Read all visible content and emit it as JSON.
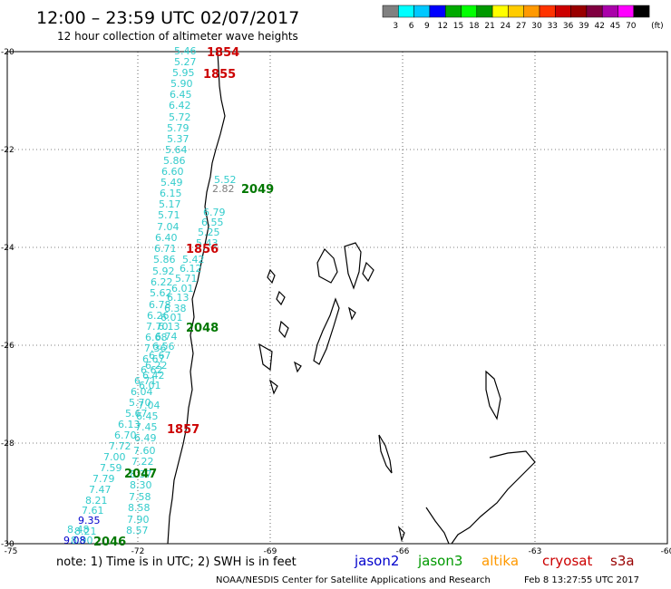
{
  "header": {
    "title": "12:00 – 23:59 UTC 02/07/2017",
    "subtitle": "12 hour collection of altimeter wave heights"
  },
  "legend": {
    "unit": "(ft)",
    "colors": [
      "#808080",
      "#00ffff",
      "#00c8ff",
      "#0000ff",
      "#00aa00",
      "#00ff00",
      "#009900",
      "#ffff00",
      "#ffcc00",
      "#ff9900",
      "#ff3300",
      "#cc0000",
      "#990000",
      "#800040",
      "#aa00aa",
      "#ff00ff",
      "#000000"
    ],
    "labels": [
      "3",
      "6",
      "9",
      "12",
      "15",
      "18",
      "21",
      "24",
      "27",
      "30",
      "33",
      "36",
      "39",
      "42",
      "45",
      "70"
    ]
  },
  "axes": {
    "lon_labels": [
      "-75",
      "-72",
      "-69",
      "-66",
      "-63",
      "-60"
    ],
    "lat_labels": [
      "-20",
      "-22",
      "-24",
      "-26",
      "-28",
      "-30"
    ]
  },
  "wave_heights": [
    {
      "v": "5.46",
      "c": "#33cccc"
    },
    {
      "v": "5.27",
      "c": "#33cccc"
    },
    {
      "v": "5.95",
      "c": "#33cccc"
    },
    {
      "v": "5.90",
      "c": "#33cccc"
    },
    {
      "v": "6.45",
      "c": "#33cccc"
    },
    {
      "v": "6.42",
      "c": "#33cccc"
    },
    {
      "v": "5.72",
      "c": "#33cccc"
    },
    {
      "v": "5.79",
      "c": "#33cccc"
    },
    {
      "v": "5.37",
      "c": "#33cccc"
    },
    {
      "v": "5.64",
      "c": "#33cccc"
    },
    {
      "v": "5.86",
      "c": "#33cccc"
    },
    {
      "v": "6.60",
      "c": "#33cccc"
    },
    {
      "v": "5.49",
      "c": "#33cccc"
    },
    {
      "v": "6.15",
      "c": "#33cccc"
    },
    {
      "v": "5.17",
      "c": "#33cccc"
    },
    {
      "v": "5.71",
      "c": "#33cccc"
    },
    {
      "v": "7.04",
      "c": "#33cccc"
    },
    {
      "v": "6.40",
      "c": "#33cccc"
    },
    {
      "v": "6.71",
      "c": "#33cccc"
    },
    {
      "v": "5.86",
      "c": "#33cccc"
    },
    {
      "v": "5.92",
      "c": "#33cccc"
    },
    {
      "v": "6.22",
      "c": "#33cccc"
    },
    {
      "v": "5.62",
      "c": "#33cccc"
    },
    {
      "v": "6.78",
      "c": "#33cccc"
    },
    {
      "v": "6.26",
      "c": "#33cccc"
    },
    {
      "v": "7.70",
      "c": "#33cccc"
    },
    {
      "v": "6.68",
      "c": "#33cccc"
    },
    {
      "v": "7.36",
      "c": "#33cccc"
    },
    {
      "v": "6.67",
      "c": "#33cccc"
    },
    {
      "v": "6.62",
      "c": "#33cccc"
    },
    {
      "v": "6.71",
      "c": "#33cccc"
    },
    {
      "v": "6.04",
      "c": "#33cccc"
    },
    {
      "v": "5.70",
      "c": "#33cccc"
    },
    {
      "v": "5.67",
      "c": "#33cccc"
    },
    {
      "v": "6.13",
      "c": "#33cccc"
    },
    {
      "v": "6.70",
      "c": "#33cccc"
    },
    {
      "v": "7.72",
      "c": "#33cccc"
    },
    {
      "v": "7.00",
      "c": "#33cccc"
    },
    {
      "v": "7.59",
      "c": "#33cccc"
    },
    {
      "v": "7.79",
      "c": "#33cccc"
    },
    {
      "v": "7.47",
      "c": "#33cccc"
    },
    {
      "v": "8.21",
      "c": "#33cccc"
    },
    {
      "v": "7.61",
      "c": "#33cccc"
    },
    {
      "v": "9.35",
      "c": "#0000cc"
    },
    {
      "v": "8.21",
      "c": "#33cccc"
    },
    {
      "v": "8.90",
      "c": "#33cccc"
    },
    {
      "v": "8.48",
      "c": "#33cccc"
    },
    {
      "v": "9.08",
      "c": "#0000cc"
    },
    {
      "v": "5.52",
      "c": "#33cccc"
    },
    {
      "v": "2.82",
      "c": "#808080"
    },
    {
      "v": "6.79",
      "c": "#33cccc"
    },
    {
      "v": "6.55",
      "c": "#33cccc"
    },
    {
      "v": "5.25",
      "c": "#33cccc"
    },
    {
      "v": "5.43",
      "c": "#33cccc"
    },
    {
      "v": "5.42",
      "c": "#33cccc"
    },
    {
      "v": "6.12",
      "c": "#33cccc"
    },
    {
      "v": "5.71",
      "c": "#33cccc"
    },
    {
      "v": "6.01",
      "c": "#33cccc"
    },
    {
      "v": "6.13",
      "c": "#33cccc"
    },
    {
      "v": "6.38",
      "c": "#33cccc"
    },
    {
      "v": "6.01",
      "c": "#33cccc"
    },
    {
      "v": "6.13",
      "c": "#33cccc"
    },
    {
      "v": "6.74",
      "c": "#33cccc"
    },
    {
      "v": "6.56",
      "c": "#33cccc"
    },
    {
      "v": "6.67",
      "c": "#33cccc"
    },
    {
      "v": "6.22",
      "c": "#33cccc"
    },
    {
      "v": "6.42",
      "c": "#33cccc"
    },
    {
      "v": "6.01",
      "c": "#33cccc"
    },
    {
      "v": "7.04",
      "c": "#33cccc"
    },
    {
      "v": "6.45",
      "c": "#33cccc"
    },
    {
      "v": "7.45",
      "c": "#33cccc"
    },
    {
      "v": "6.49",
      "c": "#33cccc"
    },
    {
      "v": "7.60",
      "c": "#33cccc"
    },
    {
      "v": "7.22",
      "c": "#33cccc"
    },
    {
      "v": "8.37",
      "c": "#33cccc"
    },
    {
      "v": "8.30",
      "c": "#33cccc"
    },
    {
      "v": "7.58",
      "c": "#33cccc"
    },
    {
      "v": "8.58",
      "c": "#33cccc"
    },
    {
      "v": "7.90",
      "c": "#33cccc"
    },
    {
      "v": "8.57",
      "c": "#33cccc"
    }
  ],
  "time_labels": [
    {
      "t": "1854",
      "c": "#cc0000"
    },
    {
      "t": "1855",
      "c": "#cc0000"
    },
    {
      "t": "2049",
      "c": "#007700"
    },
    {
      "t": "1856",
      "c": "#cc0000"
    },
    {
      "t": "2048",
      "c": "#007700"
    },
    {
      "t": "1857",
      "c": "#cc0000"
    },
    {
      "t": "2047",
      "c": "#007700"
    },
    {
      "t": "2046",
      "c": "#007700"
    }
  ],
  "footer": {
    "note": "note: 1) Time is in UTC; 2) SWH is in feet",
    "satellites": [
      {
        "name": "jason2",
        "color": "#0000cc"
      },
      {
        "name": "jason3",
        "color": "#009900"
      },
      {
        "name": "altika",
        "color": "#ff9900"
      },
      {
        "name": "cryosat",
        "color": "#cc0000"
      },
      {
        "name": "s3a",
        "color": "#990000"
      }
    ],
    "credit": "NOAA/NESDIS Center for Satellite Applications and Research",
    "timestamp": "Feb  8 13:27:55 UTC 2017"
  }
}
